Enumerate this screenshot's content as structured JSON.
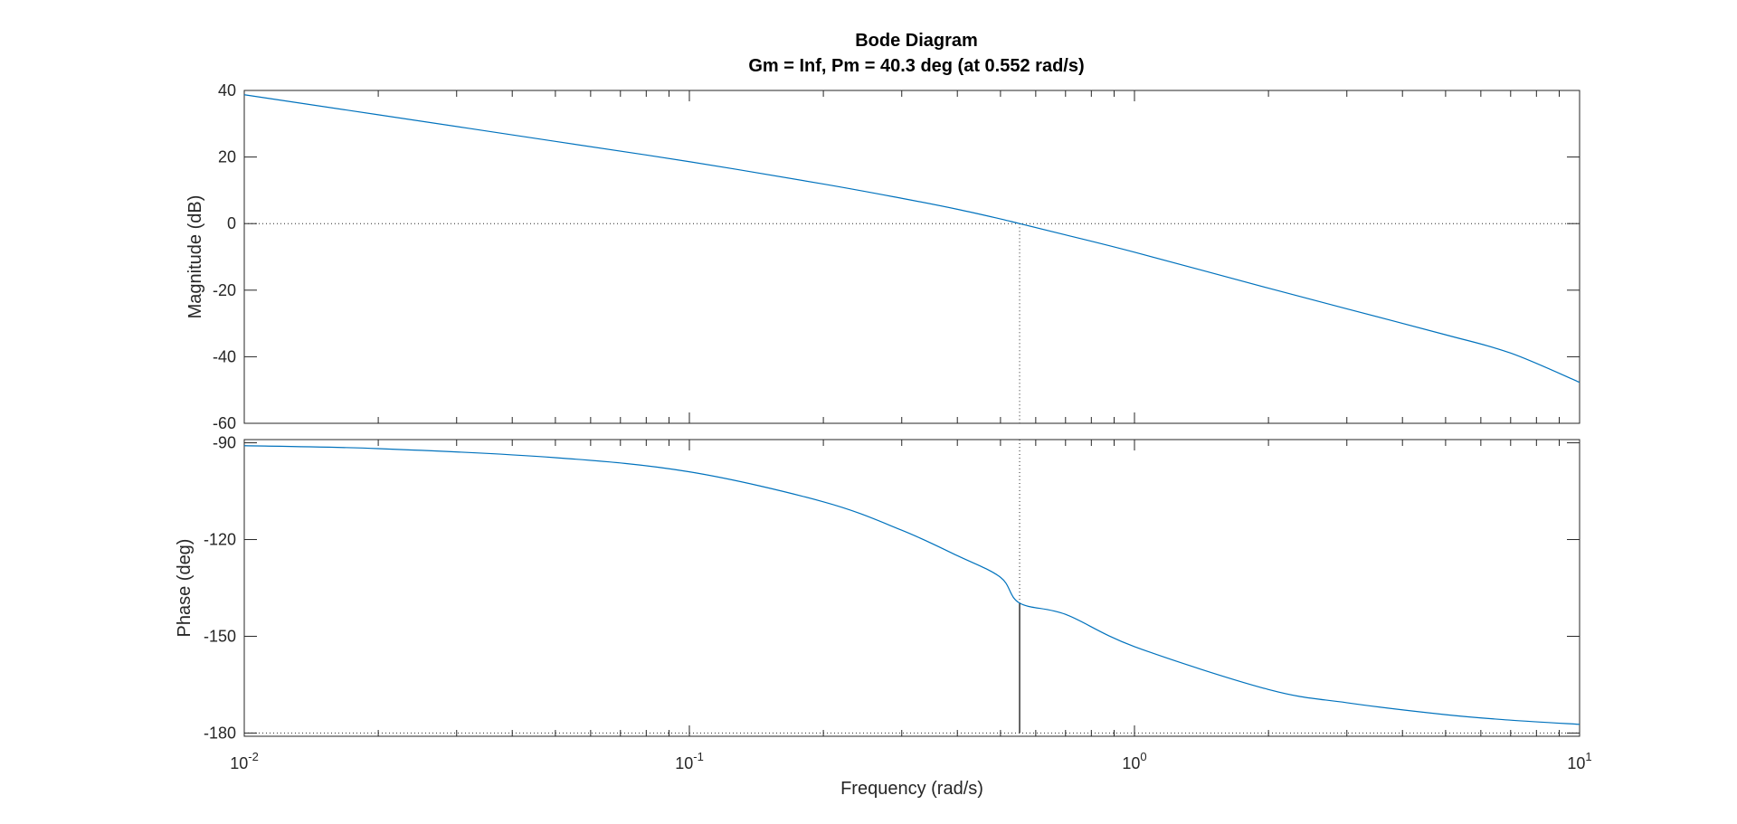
{
  "chart_data": {
    "type": "line",
    "title": "Bode Diagram",
    "subtitle": "Gm = Inf,  Pm = 40.3 deg (at 0.552 rad/s)",
    "xlabel": "Frequency  (rad/s)",
    "x_scale": "log",
    "xlim": [
      0.01,
      10
    ],
    "x_ticks": [
      {
        "value": 0.01,
        "base": "10",
        "exp": "-2"
      },
      {
        "value": 0.1,
        "base": "10",
        "exp": "-1"
      },
      {
        "value": 1,
        "base": "10",
        "exp": "0"
      },
      {
        "value": 10,
        "base": "10",
        "exp": "1"
      }
    ],
    "grid": false,
    "line_color": "#0072BD",
    "margin_marker": {
      "frequency": 0.552,
      "phase": -139.7
    },
    "magnitude": {
      "ylabel": "Magnitude (dB)",
      "ylim": [
        -60,
        40
      ],
      "yticks": [
        "40",
        "20",
        "0",
        "-20",
        "-40",
        "-60"
      ],
      "x": [
        0.01,
        0.02,
        0.05,
        0.1,
        0.2,
        0.3,
        0.4,
        0.5,
        0.552,
        0.7,
        1,
        2,
        3,
        5,
        7,
        10
      ],
      "y": [
        38.7,
        32.7,
        24.7,
        18.6,
        11.9,
        7.6,
        4.3,
        1.4,
        0.0,
        -3.4,
        -8.6,
        -19.4,
        -25.6,
        -33.4,
        -38.9,
        -47.7
      ]
    },
    "phase": {
      "ylabel": "Phase (deg)",
      "ylim": [
        -181,
        -89
      ],
      "yticks": [
        "-90",
        "-120",
        "-150",
        "-180"
      ],
      "x": [
        0.01,
        0.02,
        0.05,
        0.1,
        0.2,
        0.3,
        0.4,
        0.5,
        0.552,
        0.7,
        1,
        2,
        3,
        5,
        7,
        10
      ],
      "y": [
        -90.9,
        -91.8,
        -94.6,
        -99.0,
        -108.3,
        -117.1,
        -125.0,
        -131.7,
        -139.7,
        -143.2,
        -153.2,
        -166.5,
        -170.6,
        -174.3,
        -176.0,
        -177.3
      ]
    }
  }
}
